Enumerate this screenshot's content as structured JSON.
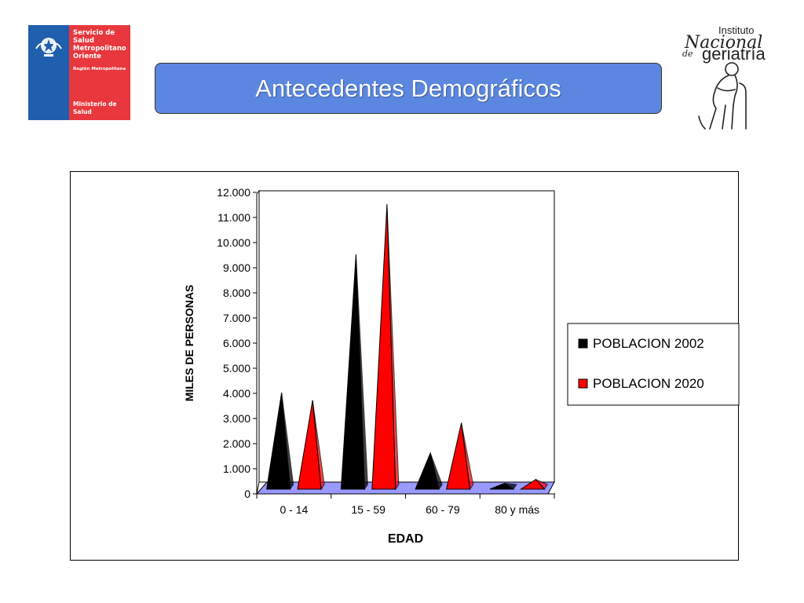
{
  "header": {
    "title": "Antecedentes Demográficos",
    "logo_left": {
      "service": "Servicio de\nSalud\nMetropolitano\nOriente",
      "region": "Región Metropolitana",
      "ministry": "Ministerio de\nSalud",
      "icon": "chile-crest-icon",
      "colors": {
        "blue": "#1f5fae",
        "red": "#e8383d"
      }
    },
    "logo_right": {
      "line1": "Instituto",
      "line2": "Nacional",
      "line3": "de",
      "line4": "geriatría",
      "icon": "elderly-with-cane-icon"
    }
  },
  "chart_data": {
    "type": "bar",
    "style": "3d-cone",
    "categories": [
      "0 - 14",
      "15 - 59",
      "60 - 79",
      "80 y más"
    ],
    "series": [
      {
        "name": "POBLACION 2002",
        "color": "#000000",
        "values": [
          3900,
          9400,
          1500,
          300
        ]
      },
      {
        "name": "POBLACION 2020",
        "color": "#ff0000",
        "values": [
          3600,
          11400,
          2700,
          450
        ]
      }
    ],
    "xlabel": "EDAD",
    "ylabel": "MILES DE PERSONAS",
    "ylim": [
      0,
      12000
    ],
    "yticks": [
      "0",
      "1.000",
      "2.000",
      "3.000",
      "4.000",
      "5.000",
      "6.000",
      "7.000",
      "8.000",
      "9.000",
      "10.000",
      "11.000",
      "12.000"
    ],
    "floor_color": "#9999ff",
    "legend_position": "right",
    "grid": false
  }
}
